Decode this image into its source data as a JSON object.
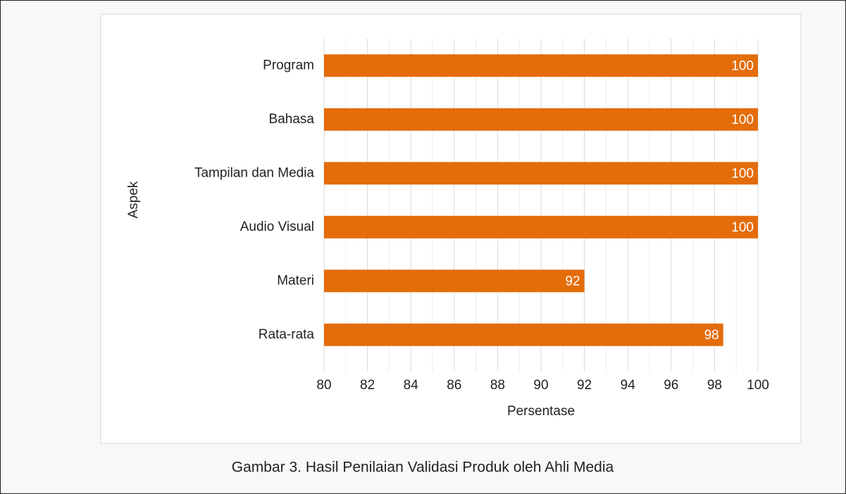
{
  "chart_data": {
    "type": "hbar",
    "caption": "Gambar 3. Hasil Penilaian Validasi Produk oleh Ahli Media",
    "x_label": "Persentase",
    "y_label": "Aspek",
    "categories": [
      "Program",
      "Bahasa",
      "Tampilan dan Media",
      "Audio Visual",
      "Materi",
      "Rata-rata"
    ],
    "values": [
      100,
      100,
      100,
      100,
      92,
      98.4
    ],
    "value_labels": [
      "100",
      "100",
      "100",
      "100",
      "92",
      "98"
    ],
    "color": "#e46c0a",
    "xlim": [
      80,
      100
    ],
    "xticks": [
      80,
      82,
      84,
      86,
      88,
      90,
      92,
      94,
      96,
      98,
      100
    ],
    "minor_xticks": [
      81,
      83,
      85,
      87,
      89,
      91,
      93,
      95,
      97,
      99
    ],
    "grid": true
  }
}
